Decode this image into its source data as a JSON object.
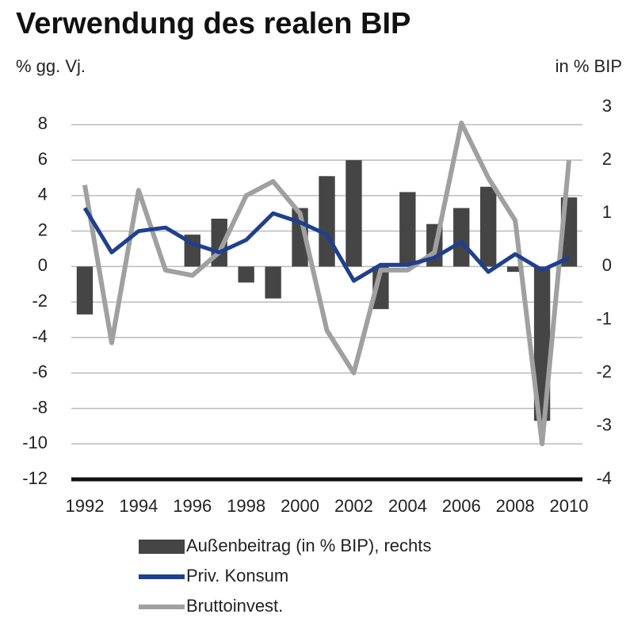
{
  "chart_data": {
    "type": "bar_line",
    "title": "Verwendung des realen BIP",
    "y_label": "% gg. Vj.",
    "y2_label": "in % BIP",
    "categories": [
      "1992",
      null,
      "1994",
      null,
      "1996",
      null,
      "1998",
      null,
      "2000",
      null,
      "2002",
      null,
      "2004",
      null,
      "2006",
      null,
      "2008",
      null,
      "2010"
    ],
    "series": [
      {
        "name": "Außenbeitrag (in % BIP), rechts",
        "kind": "bar",
        "axis": "y2",
        "color": "#454545",
        "values": [
          -0.9,
          0,
          0,
          0,
          0.6,
          0.9,
          -0.3,
          -0.6,
          1.1,
          1.7,
          2.0,
          -0.8,
          1.4,
          0.8,
          1.1,
          1.5,
          -0.1,
          -2.9,
          1.3
        ]
      },
      {
        "name": "Priv. Konsum",
        "kind": "line",
        "color": "#1f3f8f",
        "values": [
          3.3,
          0.8,
          2.0,
          2.2,
          1.3,
          0.8,
          1.5,
          3.0,
          2.5,
          1.8,
          -0.8,
          0.1,
          0.1,
          0.5,
          1.4,
          -0.3,
          0.7,
          -0.2,
          0.5
        ]
      },
      {
        "name": "Bruttoinvest.",
        "kind": "line",
        "color": "#a0a0a0",
        "values": [
          4.6,
          -4.3,
          4.3,
          -0.2,
          -0.5,
          0.8,
          4.0,
          4.8,
          3.0,
          -3.6,
          -6.0,
          -0.2,
          -0.2,
          0.8,
          8.1,
          5.0,
          2.6,
          -10.0,
          6.0
        ]
      }
    ],
    "ylim": [
      -12,
      9
    ],
    "yticks": [
      -12,
      -10,
      -8,
      -6,
      -4,
      -2,
      0,
      2,
      4,
      6,
      8
    ],
    "y2lim": [
      -4,
      3
    ],
    "y2ticks": [
      -4,
      -3,
      -2,
      -1,
      0,
      1,
      2,
      3
    ],
    "grid": true
  }
}
